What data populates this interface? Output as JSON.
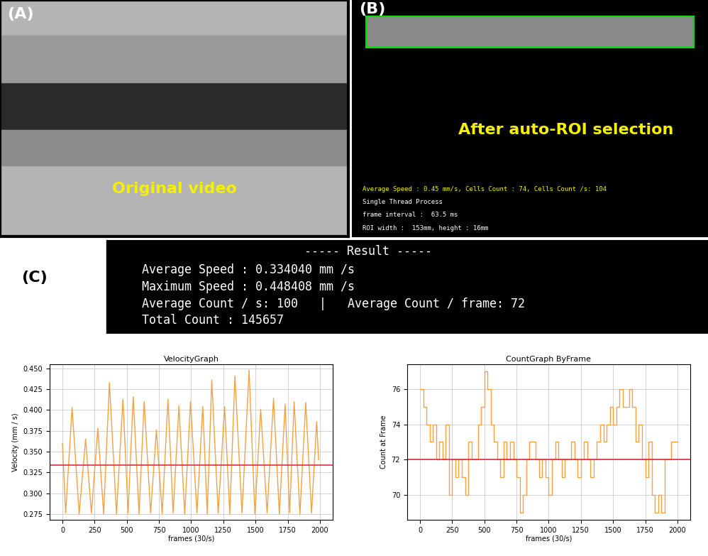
{
  "panels": {
    "A": {
      "label": "(A)",
      "caption": "Original video"
    },
    "B": {
      "label": "(B)",
      "caption": "After auto-ROI selection",
      "overlay": [
        "Average Speed : 0.45 mm/s, Cells Count : 74, Cells Count /s: 104",
        "Single Thread Process",
        "frame interval :  63.5 ms",
        "ROI width :  153mm, height : 16mm"
      ]
    },
    "C": {
      "label": "(C)",
      "title": "----- Result -----",
      "lines": [
        "Average Speed : 0.334040 mm /s",
        "Maximum Speed : 0.448408 mm /s",
        "Average Count / s: 100   |   Average Count / frame: 72",
        "Total Count : 145657"
      ]
    }
  },
  "chart_data": [
    {
      "type": "line",
      "title": "VelocityGraph",
      "x_label": "frames (30/s)",
      "y_label": "Velocity (mm / s)",
      "xlim": [
        -100,
        2100
      ],
      "xticks": [
        0,
        250,
        500,
        750,
        1000,
        1250,
        1500,
        1750,
        2000
      ],
      "ylim": [
        0.268,
        0.455
      ],
      "yticks": [
        0.275,
        {
          "value": 0.3,
          "label": "0.300"
        },
        0.325,
        {
          "value": 0.35,
          "label": "0.350"
        },
        0.375,
        {
          "value": 0.4,
          "label": "0.400"
        },
        0.425,
        {
          "value": 0.45,
          "label": "0.450"
        }
      ],
      "grid": true,
      "series": [
        {
          "type": "line",
          "color": "#f5a142",
          "line_style": "solid",
          "x": [
            0,
            25,
            75,
            130,
            180,
            225,
            275,
            320,
            365,
            420,
            470,
            510,
            550,
            595,
            635,
            685,
            730,
            775,
            820,
            860,
            905,
            950,
            995,
            1045,
            1090,
            1125,
            1160,
            1210,
            1260,
            1300,
            1340,
            1395,
            1450,
            1495,
            1540,
            1590,
            1640,
            1685,
            1730,
            1765,
            1800,
            1845,
            1890,
            1935,
            1975,
            1990
          ],
          "values": [
            0.36,
            0.276,
            0.403,
            0.275,
            0.365,
            0.276,
            0.378,
            0.275,
            0.433,
            0.275,
            0.413,
            0.276,
            0.416,
            0.275,
            0.41,
            0.276,
            0.376,
            0.275,
            0.413,
            0.276,
            0.405,
            0.275,
            0.41,
            0.276,
            0.404,
            0.275,
            0.436,
            0.276,
            0.404,
            0.275,
            0.441,
            0.276,
            0.448,
            0.275,
            0.401,
            0.276,
            0.414,
            0.275,
            0.407,
            0.276,
            0.41,
            0.275,
            0.409,
            0.276,
            0.386,
            0.34
          ]
        },
        {
          "type": "hline",
          "color": "#e03030",
          "values": [
            0.33404
          ]
        }
      ]
    },
    {
      "type": "line",
      "title": "CountGraph ByFrame",
      "x_label": "frames (30/s)",
      "y_label": "Count at Frame",
      "xlim": [
        -100,
        2100
      ],
      "xticks": [
        0,
        250,
        500,
        750,
        1000,
        1250,
        1500,
        1750,
        2000
      ],
      "ylim": [
        68.6,
        77.4
      ],
      "yticks": [
        70,
        72,
        74,
        76
      ],
      "grid": true,
      "series": [
        {
          "type": "line",
          "color": "#f5a142",
          "line_style": "steps",
          "x": [
            0,
            25,
            50,
            75,
            100,
            125,
            150,
            175,
            200,
            225,
            250,
            275,
            300,
            325,
            350,
            375,
            400,
            425,
            450,
            475,
            500,
            525,
            550,
            575,
            600,
            625,
            650,
            675,
            700,
            725,
            750,
            775,
            800,
            825,
            850,
            875,
            900,
            925,
            950,
            975,
            1000,
            1025,
            1050,
            1075,
            1100,
            1125,
            1150,
            1175,
            1200,
            1225,
            1250,
            1275,
            1300,
            1325,
            1350,
            1375,
            1400,
            1425,
            1450,
            1475,
            1500,
            1525,
            1550,
            1575,
            1600,
            1625,
            1650,
            1675,
            1700,
            1725,
            1750,
            1775,
            1800,
            1825,
            1850,
            1875,
            1900,
            1925,
            1950,
            1975,
            2000
          ],
          "values": [
            76,
            75,
            74,
            73,
            74,
            72,
            73,
            72,
            74,
            70,
            72,
            71,
            72,
            71,
            70,
            73,
            72,
            72,
            74,
            75,
            77,
            76,
            74,
            73,
            72,
            71,
            73,
            72,
            73,
            72,
            71,
            69,
            70,
            72,
            73,
            73,
            72,
            71,
            72,
            71,
            70,
            72,
            73,
            72,
            71,
            72,
            72,
            73,
            72,
            71,
            72,
            73,
            72,
            71,
            72,
            73,
            74,
            73,
            74,
            75,
            74,
            75,
            76,
            75,
            75,
            76,
            75,
            73,
            74,
            72,
            71,
            73,
            70,
            69,
            70,
            69,
            72,
            72,
            73,
            73,
            73
          ]
        },
        {
          "type": "hline",
          "color": "#e03030",
          "values": [
            72
          ]
        }
      ]
    }
  ]
}
